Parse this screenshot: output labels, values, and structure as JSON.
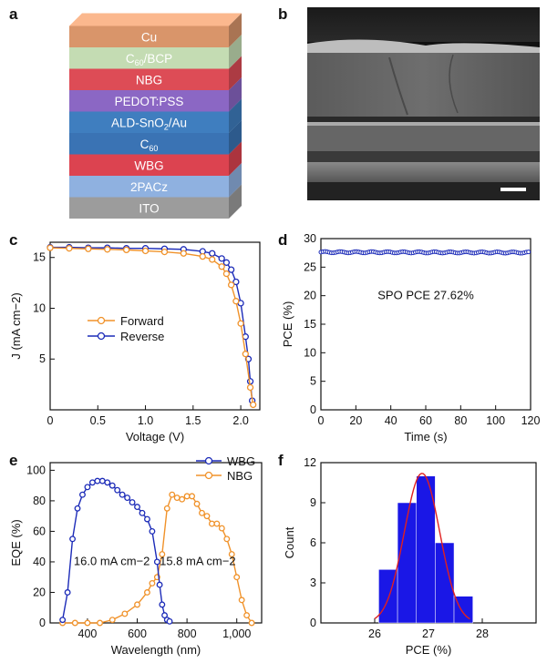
{
  "panel_letters": {
    "a": "a",
    "b": "b",
    "c": "c",
    "d": "d",
    "e": "e",
    "f": "f"
  },
  "stack": {
    "layers": [
      {
        "label": "Cu",
        "color": "#d9956a"
      },
      {
        "label": "C60/BCP",
        "sub": "60",
        "rest": "/BCP",
        "base": "C",
        "color": "#c4dcb3"
      },
      {
        "label": "NBG",
        "color": "#dd4c56"
      },
      {
        "label": "PEDOT:PSS",
        "color": "#8b67c4"
      },
      {
        "label": "ALD-SnO2/Au",
        "base": "ALD-SnO",
        "sub": "2",
        "rest": "/Au",
        "color": "#3f7ebf"
      },
      {
        "label": "C60",
        "base": "C",
        "sub": "60",
        "rest": "",
        "color": "#3a73b4"
      },
      {
        "label": "WBG",
        "color": "#dc4350"
      },
      {
        "label": "2PACz",
        "color": "#8fb1e0"
      },
      {
        "label": "ITO",
        "color": "#9c9c9c"
      }
    ]
  },
  "chart_data": [
    {
      "id": "c",
      "type": "line",
      "xlabel": "Voltage (V)",
      "ylabel": "J (mA cm−2)",
      "xlim": [
        0,
        2.2
      ],
      "ylim": [
        0,
        16.5
      ],
      "xticks": [
        "0",
        "0.5",
        "1.0",
        "1.5",
        "2.0"
      ],
      "yticks": [
        "5",
        "10",
        "15"
      ],
      "legend": "center-left",
      "series": [
        {
          "name": "Forward",
          "color": "#f0922a",
          "x": [
            0,
            0.2,
            0.4,
            0.6,
            0.8,
            1.0,
            1.2,
            1.4,
            1.6,
            1.7,
            1.8,
            1.85,
            1.9,
            1.95,
            2.0,
            2.05,
            2.1,
            2.13
          ],
          "y": [
            15.95,
            15.9,
            15.85,
            15.8,
            15.75,
            15.65,
            15.55,
            15.4,
            15.1,
            14.8,
            14.1,
            13.4,
            12.3,
            10.7,
            8.5,
            5.5,
            2.2,
            0.5
          ]
        },
        {
          "name": "Reverse",
          "color": "#1c2bb8",
          "x": [
            0,
            0.2,
            0.4,
            0.6,
            0.8,
            1.0,
            1.2,
            1.4,
            1.6,
            1.7,
            1.8,
            1.85,
            1.9,
            1.95,
            2.0,
            2.05,
            2.08,
            2.1,
            2.12
          ],
          "y": [
            16.0,
            16.0,
            15.95,
            15.95,
            15.9,
            15.9,
            15.85,
            15.8,
            15.6,
            15.4,
            14.9,
            14.5,
            13.8,
            12.6,
            10.5,
            7.2,
            5.0,
            2.8,
            0.9
          ]
        }
      ]
    },
    {
      "id": "d",
      "type": "line",
      "xlabel": "Time (s)",
      "ylabel": "PCE (%)",
      "xlim": [
        0,
        120
      ],
      "ylim": [
        0,
        30
      ],
      "xticks": [
        "0",
        "20",
        "40",
        "60",
        "80",
        "100",
        "120"
      ],
      "yticks": [
        "0",
        "5",
        "10",
        "15",
        "20",
        "25",
        "30"
      ],
      "annotation": "SPO PCE 27.62%",
      "series": [
        {
          "color": "#1c2bb8",
          "x": [
            0,
            120
          ],
          "y": [
            27.62,
            27.55
          ]
        }
      ]
    },
    {
      "id": "e",
      "type": "line",
      "xlabel": "Wavelength (nm)",
      "ylabel": "EQE (%)",
      "xlim": [
        250,
        1100
      ],
      "ylim": [
        0,
        105
      ],
      "xticks": [
        "400",
        "600",
        "800",
        "1,000"
      ],
      "yticks": [
        "0",
        "20",
        "40",
        "60",
        "80",
        "100"
      ],
      "legend": "top-right",
      "annotations": [
        "16.0 mA cm−2",
        "15.8 mA cm−2"
      ],
      "series": [
        {
          "name": "WBG",
          "color": "#1c2bb8",
          "x": [
            300,
            320,
            340,
            360,
            380,
            400,
            420,
            440,
            460,
            480,
            500,
            520,
            540,
            560,
            580,
            600,
            620,
            640,
            660,
            680,
            690,
            700,
            710,
            720,
            730
          ],
          "y": [
            2,
            20,
            55,
            75,
            84,
            89,
            92,
            93,
            93,
            92,
            90,
            87,
            84,
            82,
            79,
            76,
            72,
            68,
            60,
            40,
            25,
            12,
            5,
            2,
            1
          ]
        },
        {
          "name": "NBG",
          "color": "#f0922a",
          "x": [
            300,
            350,
            400,
            450,
            500,
            550,
            600,
            640,
            660,
            680,
            700,
            720,
            740,
            760,
            780,
            800,
            820,
            840,
            860,
            880,
            900,
            920,
            940,
            960,
            980,
            1000,
            1020,
            1040,
            1060
          ],
          "y": [
            0,
            0,
            0,
            0,
            2,
            6,
            12,
            20,
            26,
            30,
            45,
            75,
            84,
            82,
            81,
            83,
            83,
            78,
            72,
            70,
            65,
            65,
            62,
            55,
            45,
            30,
            15,
            5,
            0
          ]
        }
      ]
    },
    {
      "id": "f",
      "type": "bar",
      "xlabel": "PCE (%)",
      "ylabel": "Count",
      "xlim": [
        25,
        29
      ],
      "ylim": [
        0,
        12
      ],
      "xticks": [
        "26",
        "27",
        "28"
      ],
      "yticks": [
        "0",
        "3",
        "6",
        "9",
        "12"
      ],
      "bins": [
        {
          "x": 26.25,
          "count": 4
        },
        {
          "x": 26.6,
          "count": 9
        },
        {
          "x": 26.95,
          "count": 11
        },
        {
          "x": 27.3,
          "count": 6
        },
        {
          "x": 27.65,
          "count": 2
        }
      ],
      "binwidth": 0.35,
      "fit": {
        "mu": 26.88,
        "sigma": 0.33,
        "peak": 11.2
      }
    }
  ]
}
